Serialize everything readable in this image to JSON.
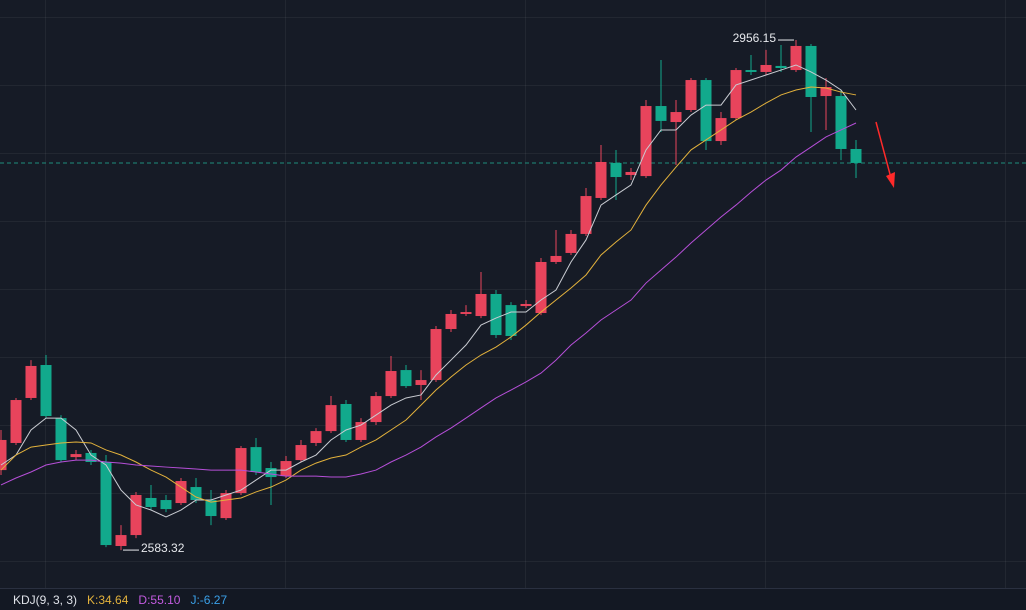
{
  "chart_data": {
    "type": "candlestick",
    "up_color": "#e8445c",
    "down_color": "#12a98c",
    "ylim": [
      2555.6,
      2985.4
    ],
    "open": [
      2641.8,
      2661.6,
      2694.5,
      2718.6,
      2679.8,
      2651.3,
      2654.3,
      2647.7,
      2586.3,
      2594.3,
      2621.4,
      2619.9,
      2617.7,
      2629.4,
      2619.9,
      2606.7,
      2625.0,
      2658.6,
      2643.3,
      2637.4,
      2649.1,
      2661.6,
      2670.3,
      2690.1,
      2663.8,
      2676.9,
      2695.9,
      2714.9,
      2704.0,
      2707.6,
      2744.9,
      2755.9,
      2754.4,
      2770.5,
      2762.4,
      2761.7,
      2756.6,
      2793.9,
      2800.5,
      2814.4,
      2840.7,
      2866.3,
      2857.5,
      2856.7,
      2907.9,
      2896.2,
      2905.0,
      2926.9,
      2882.3,
      2899.1,
      2934.2,
      2932.8,
      2937.2,
      2934.2,
      2951.8,
      2915.2,
      2915.2,
      2876.5
    ],
    "high": [
      2671.1,
      2694.5,
      2722.2,
      2725.9,
      2682.0,
      2656.5,
      2656.5,
      2652.8,
      2601.6,
      2625.8,
      2630.9,
      2623.6,
      2636.0,
      2636.0,
      2627.2,
      2627.2,
      2659.4,
      2665.2,
      2647.7,
      2652.1,
      2663.8,
      2672.5,
      2695.9,
      2693.0,
      2679.8,
      2698.9,
      2725.2,
      2718.6,
      2714.9,
      2747.1,
      2758.8,
      2762.4,
      2786.6,
      2773.4,
      2764.6,
      2766.1,
      2796.8,
      2817.3,
      2817.3,
      2848.0,
      2879.4,
      2875.8,
      2862.6,
      2912.3,
      2941.5,
      2912.3,
      2928.4,
      2928.4,
      2903.5,
      2935.7,
      2945.2,
      2948.9,
      2952.5,
      2956.15,
      2953.2,
      2928.4,
      2919.6,
      2883.1
    ],
    "low": [
      2638.2,
      2660.1,
      2693.0,
      2679.8,
      2647.7,
      2649.1,
      2645.5,
      2585.5,
      2583.32,
      2592.1,
      2612.6,
      2611.1,
      2616.3,
      2617.7,
      2601.6,
      2605.3,
      2623.6,
      2638.2,
      2616.3,
      2636.0,
      2647.7,
      2659.4,
      2668.9,
      2662.3,
      2662.3,
      2674.7,
      2694.5,
      2701.8,
      2693.0,
      2706.2,
      2742.7,
      2754.4,
      2752.9,
      2738.3,
      2736.9,
      2760.3,
      2755.1,
      2792.4,
      2799.0,
      2812.9,
      2839.2,
      2839.2,
      2853.8,
      2855.3,
      2888.9,
      2864.8,
      2903.5,
      2875.8,
      2879.4,
      2897.7,
      2930.6,
      2930.6,
      2932.8,
      2932.8,
      2888.9,
      2890.4,
      2868.4,
      2855.3
    ],
    "close": [
      2663.8,
      2693.0,
      2717.9,
      2681.3,
      2649.1,
      2653.5,
      2647.7,
      2587.0,
      2594.3,
      2623.6,
      2614.8,
      2613.3,
      2633.8,
      2619.9,
      2608.2,
      2625.0,
      2657.9,
      2640.4,
      2636.7,
      2648.4,
      2660.1,
      2670.3,
      2689.3,
      2663.8,
      2676.9,
      2695.9,
      2714.2,
      2703.2,
      2707.6,
      2744.9,
      2755.9,
      2757.3,
      2770.5,
      2740.5,
      2739.8,
      2763.2,
      2793.9,
      2798.3,
      2814.4,
      2842.1,
      2867.0,
      2856.0,
      2859.7,
      2907.9,
      2897.0,
      2903.5,
      2926.9,
      2882.3,
      2899.1,
      2934.2,
      2932.8,
      2937.9,
      2935.7,
      2951.8,
      2914.5,
      2921.8,
      2876.5,
      2866.3
    ],
    "lines": [
      {
        "color": "#c9ccd2",
        "values": [
          2645.5,
          2652.8,
          2671.1,
          2679.8,
          2679.8,
          2671.1,
          2652.8,
          2645.5,
          2627.2,
          2616.3,
          2612.6,
          2607.5,
          2612.6,
          2619.9,
          2619.9,
          2623.6,
          2627.2,
          2634.5,
          2641.8,
          2641.8,
          2647.7,
          2652.8,
          2663.8,
          2671.1,
          2674.7,
          2682.0,
          2689.3,
          2694.5,
          2696.7,
          2711.3,
          2722.2,
          2733.2,
          2747.8,
          2752.9,
          2757.3,
          2757.3,
          2766.1,
          2773.4,
          2793.9,
          2810.0,
          2835.5,
          2842.9,
          2850.2,
          2875.8,
          2890.4,
          2890.4,
          2901.3,
          2908.6,
          2908.6,
          2923.3,
          2926.9,
          2930.6,
          2934.2,
          2937.9,
          2932.8,
          2926.9,
          2919.6,
          2905.0
        ]
      },
      {
        "color": "#e3b23c",
        "values": [
          2641.8,
          2652.8,
          2658.6,
          2660.1,
          2661.6,
          2662.3,
          2661.6,
          2656.5,
          2652.8,
          2647.7,
          2641.8,
          2636.7,
          2629.4,
          2622.1,
          2618.4,
          2619.9,
          2621.4,
          2625.8,
          2629.4,
          2634.5,
          2641.8,
          2646.9,
          2650.6,
          2652.8,
          2658.6,
          2663.8,
          2671.1,
          2678.4,
          2689.3,
          2700.3,
          2709.8,
          2718.6,
          2725.9,
          2731.7,
          2739.1,
          2747.8,
          2757.3,
          2766.1,
          2774.9,
          2784.4,
          2799.0,
          2808.5,
          2817.3,
          2835.5,
          2850.2,
          2863.3,
          2875.8,
          2883.1,
          2890.4,
          2897.7,
          2903.5,
          2910.1,
          2916.0,
          2919.6,
          2921.8,
          2921.1,
          2918.1,
          2916.0
        ]
      },
      {
        "color": "#b64fd8",
        "values": [
          2630.9,
          2636.0,
          2640.4,
          2645.5,
          2647.7,
          2649.1,
          2649.1,
          2647.7,
          2646.9,
          2645.5,
          2644.8,
          2644.0,
          2643.3,
          2642.6,
          2641.8,
          2641.8,
          2641.8,
          2640.4,
          2638.9,
          2637.4,
          2637.4,
          2637.4,
          2636.7,
          2636.7,
          2638.9,
          2641.8,
          2647.7,
          2652.8,
          2658.6,
          2666.0,
          2672.5,
          2679.8,
          2687.2,
          2694.5,
          2700.3,
          2706.2,
          2712.7,
          2722.2,
          2733.2,
          2742.0,
          2751.5,
          2758.8,
          2766.1,
          2778.5,
          2788.0,
          2797.5,
          2807.8,
          2817.3,
          2826.8,
          2835.5,
          2845.0,
          2853.8,
          2861.1,
          2870.6,
          2877.9,
          2885.3,
          2890.4,
          2895.5
        ]
      }
    ],
    "max_label": "2956.15",
    "min_label": "2583.32",
    "indicator": {
      "name": "KDJ(9, 3, 3)",
      "items": [
        {
          "text": "K:34.64",
          "color": "#e3b23c"
        },
        {
          "text": "D:55.10",
          "color": "#c35be0"
        },
        {
          "text": "J:-6.27",
          "color": "#3aa0e8"
        }
      ]
    }
  }
}
